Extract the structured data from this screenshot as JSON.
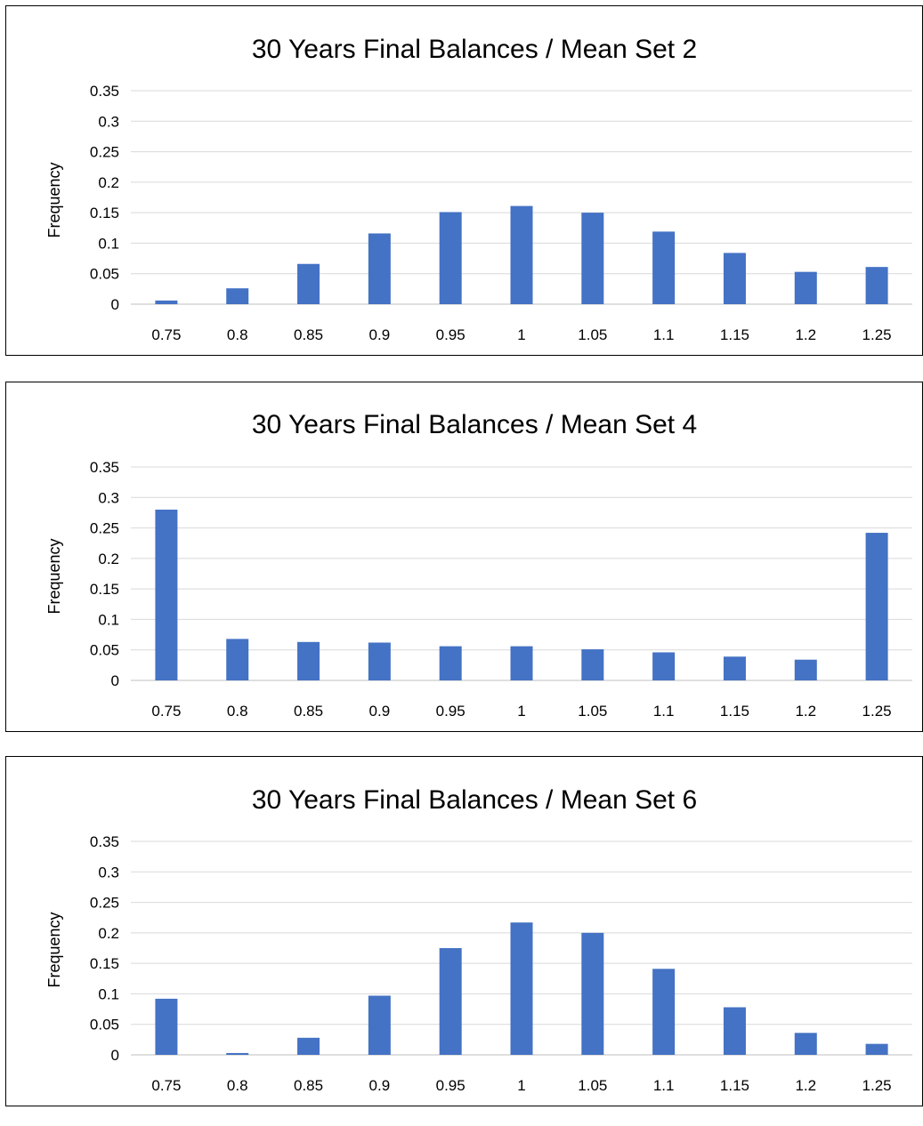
{
  "chart_data": [
    {
      "type": "bar",
      "title": "30 Years Final Balances / Mean Set 2",
      "xlabel": "",
      "ylabel": "Frequency",
      "ylim": [
        0,
        0.35
      ],
      "yticks": [
        "0",
        "0.05",
        "0.1",
        "0.15",
        "0.2",
        "0.25",
        "0.3",
        "0.35"
      ],
      "categories": [
        "0.75",
        "0.8",
        "0.85",
        "0.9",
        "0.95",
        "1",
        "1.05",
        "1.1",
        "1.15",
        "1.2",
        "1.25"
      ],
      "values": [
        0.006,
        0.026,
        0.066,
        0.116,
        0.151,
        0.161,
        0.15,
        0.119,
        0.084,
        0.053,
        0.061
      ],
      "color": "#4472C4",
      "grid": true,
      "legend": "none"
    },
    {
      "type": "bar",
      "title": "30 Years Final Balances / Mean Set 4",
      "xlabel": "",
      "ylabel": "Frequency",
      "ylim": [
        0,
        0.35
      ],
      "yticks": [
        "0",
        "0.05",
        "0.1",
        "0.15",
        "0.2",
        "0.25",
        "0.3",
        "0.35"
      ],
      "categories": [
        "0.75",
        "0.8",
        "0.85",
        "0.9",
        "0.95",
        "1",
        "1.05",
        "1.1",
        "1.15",
        "1.2",
        "1.25"
      ],
      "values": [
        0.28,
        0.068,
        0.063,
        0.062,
        0.056,
        0.056,
        0.051,
        0.046,
        0.039,
        0.034,
        0.242
      ],
      "color": "#4472C4",
      "grid": true,
      "legend": "none"
    },
    {
      "type": "bar",
      "title": "30 Years Final Balances / Mean Set 6",
      "xlabel": "",
      "ylabel": "Frequency",
      "ylim": [
        0,
        0.35
      ],
      "yticks": [
        "0",
        "0.05",
        "0.1",
        "0.15",
        "0.2",
        "0.25",
        "0.3",
        "0.35"
      ],
      "categories": [
        "0.75",
        "0.8",
        "0.85",
        "0.9",
        "0.95",
        "1",
        "1.05",
        "1.1",
        "1.15",
        "1.2",
        "1.25"
      ],
      "values": [
        0.092,
        0.003,
        0.028,
        0.097,
        0.175,
        0.217,
        0.2,
        0.141,
        0.078,
        0.036,
        0.018
      ],
      "color": "#4472C4",
      "grid": true,
      "legend": "none"
    }
  ]
}
